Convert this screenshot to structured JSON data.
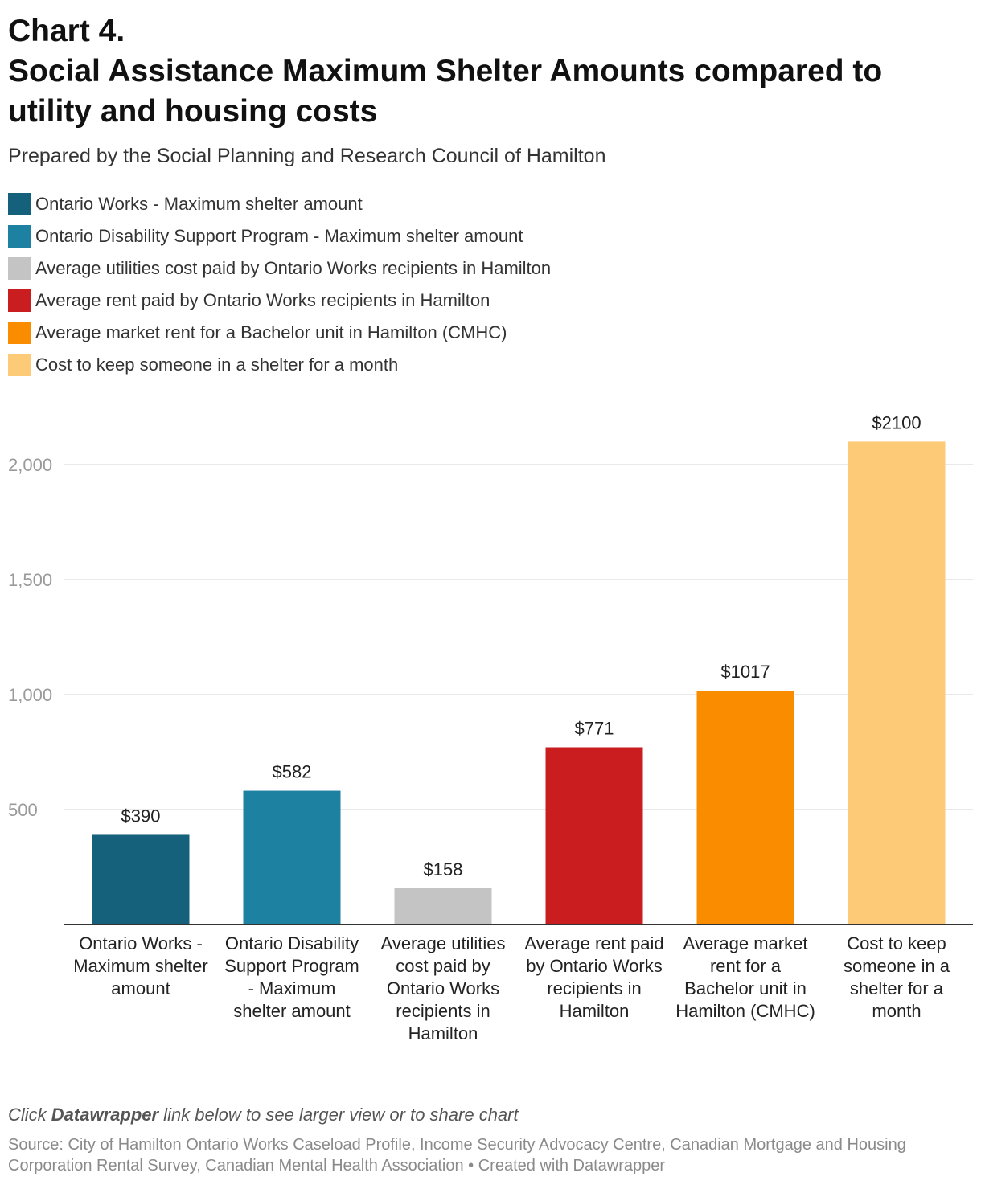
{
  "header": {
    "title_line1": "Chart 4.",
    "title_line2": "Social Assistance Maximum Shelter Amounts compared to utility and housing costs",
    "subtitle": "Prepared by the Social Planning and Research Council of Hamilton"
  },
  "chart_data": {
    "type": "bar",
    "categories": [
      "Ontario Works - Maximum shelter amount",
      "Ontario Disability Support Program - Maximum shelter amount",
      "Average utilities cost paid by Ontario Works recipients in Hamilton",
      "Average rent paid by Ontario Works recipients in Hamilton",
      "Average market rent for a Bachelor unit in Hamilton (CMHC)",
      "Cost to keep someone in a shelter for a month"
    ],
    "values": [
      390,
      582,
      158,
      771,
      1017,
      2100
    ],
    "data_labels": [
      "$390",
      "$582",
      "$158",
      "$771",
      "$1017",
      "$2100"
    ],
    "colors": [
      "#15607a",
      "#1d81a2",
      "#c4c4c4",
      "#c91d20",
      "#fa8c00",
      "#fdca78"
    ],
    "legend": [
      "Ontario Works - Maximum shelter amount",
      "Ontario Disability Support Program - Maximum shelter amount",
      "Average utilities cost paid by Ontario Works recipients in Hamilton",
      "Average rent paid by Ontario Works recipients in Hamilton",
      "Average market rent for a Bachelor unit in Hamilton (CMHC)",
      "Cost to keep someone in a shelter for a month"
    ],
    "yticks": [
      500,
      1000,
      1500,
      2000
    ],
    "ytick_labels": [
      "500",
      "1,000",
      "1,500",
      "2,000"
    ],
    "ylim": [
      0,
      2100
    ],
    "grid": true,
    "legend_position": "top-left",
    "xlabel": "",
    "ylabel": ""
  },
  "footer": {
    "note_prefix": "Click ",
    "note_bold": "Datawrapper",
    "note_suffix": " link below to see larger view or to share chart",
    "source": "Source: City of Hamilton Ontario Works Caseload Profile, Income Security Advocacy Centre, Canadian Mortgage and Housing Corporation Rental Survey, Canadian Mental Health Association • Created with Datawrapper"
  }
}
